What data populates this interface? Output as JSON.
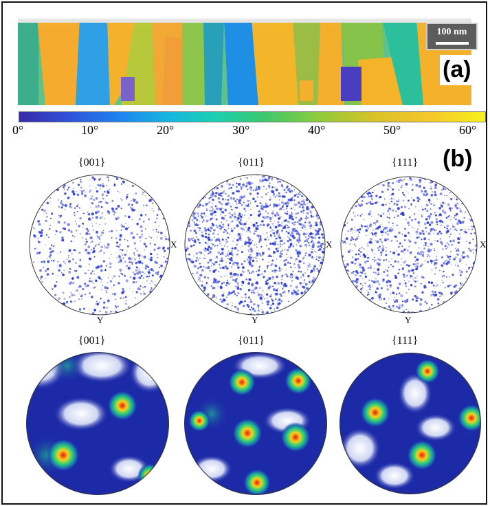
{
  "panel_a": {
    "label": "(a)",
    "scale_bar": "100 nm",
    "colorbar_ticks": [
      "0°",
      "10°",
      "20°",
      "30°",
      "40°",
      "50°",
      "60°"
    ]
  },
  "panel_b": {
    "label": "(b)",
    "discrete_titles": [
      "{001}",
      "{011}",
      "{111}"
    ],
    "contour_titles": [
      "{001}",
      "{011}",
      "{111}"
    ],
    "axis_x": "X",
    "axis_y": "Y"
  },
  "colors": {
    "point_blue": "#2f3fd6",
    "contour_dark": "#1c2aa8",
    "contour_hot": "#e81818"
  }
}
